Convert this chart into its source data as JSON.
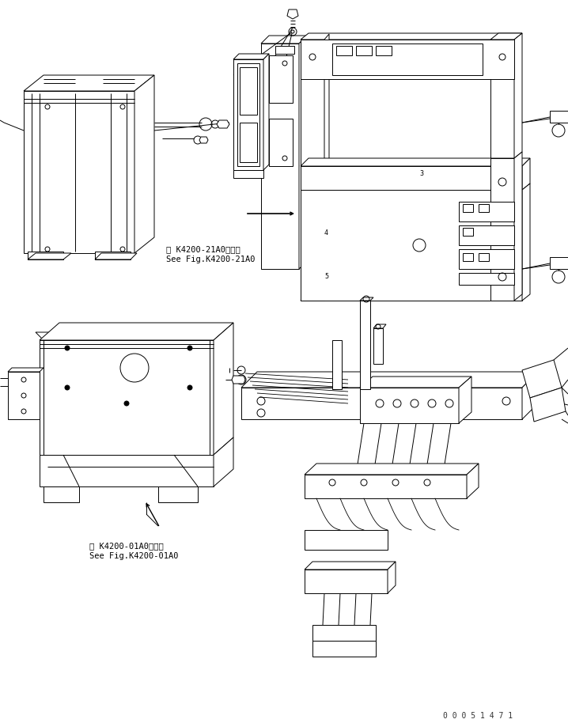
{
  "background_color": "#ffffff",
  "line_color": "#000000",
  "lw": 0.7,
  "caption1_line1": "第 K4200-21A0図参照",
  "caption1_line2": "See Fig.K4200-21A0",
  "caption2_line1": "第 K4200-01A0図参照",
  "caption2_line2": "See Fig.K4200-01A0",
  "watermark": "0 0 0 5 1 4 7 1",
  "fig_width": 7.18,
  "fig_height": 9.14,
  "dpi": 100
}
